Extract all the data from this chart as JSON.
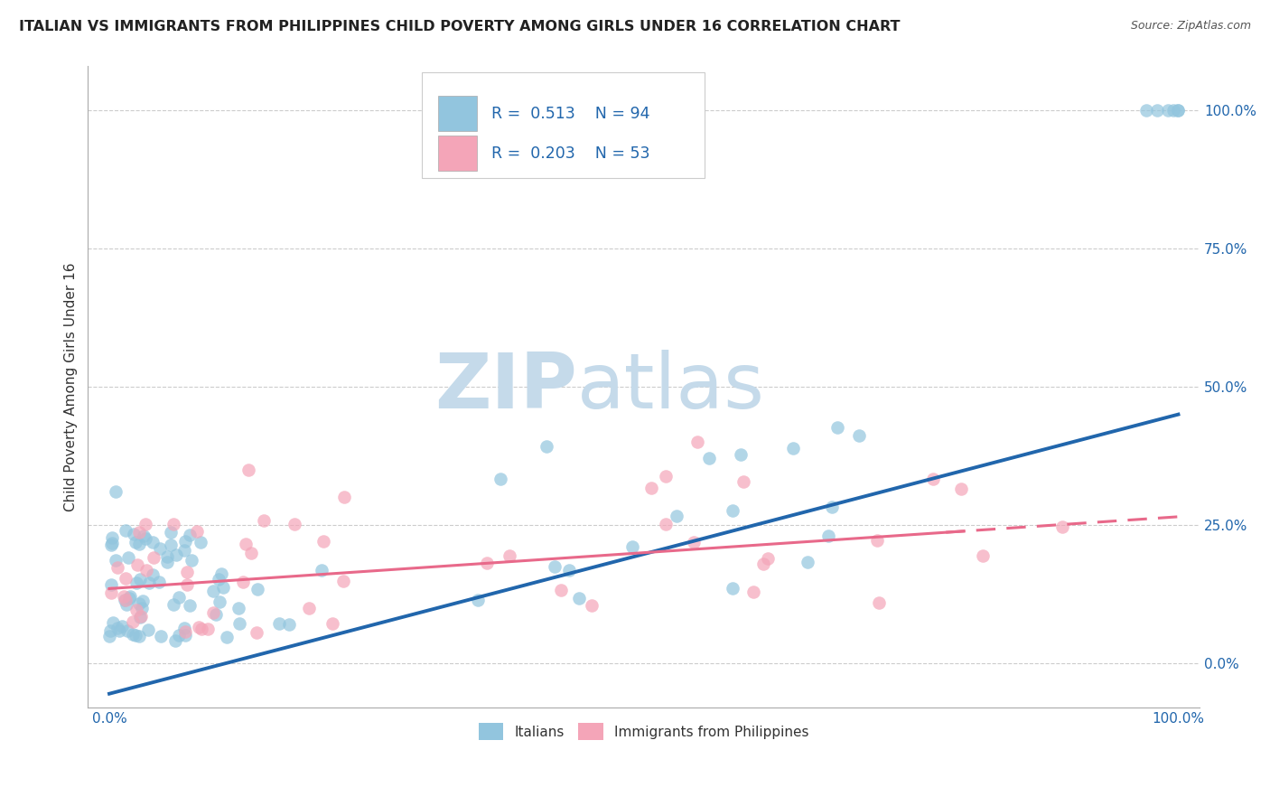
{
  "title": "ITALIAN VS IMMIGRANTS FROM PHILIPPINES CHILD POVERTY AMONG GIRLS UNDER 16 CORRELATION CHART",
  "source": "Source: ZipAtlas.com",
  "ylabel": "Child Poverty Among Girls Under 16",
  "xlim": [
    -0.02,
    1.02
  ],
  "ylim": [
    -0.08,
    1.08
  ],
  "yticks": [
    0.0,
    0.25,
    0.5,
    0.75,
    1.0
  ],
  "ytick_labels": [
    "0.0%",
    "25.0%",
    "50.0%",
    "75.0%",
    "100.0%"
  ],
  "xtick_labels": [
    "0.0%",
    "100.0%"
  ],
  "legend_R1": "R =  0.513",
  "legend_N1": "N = 94",
  "legend_R2": "R =  0.203",
  "legend_N2": "N = 53",
  "label1": "Italians",
  "label2": "Immigrants from Philippines",
  "blue_color": "#92c5de",
  "pink_color": "#f4a5b8",
  "blue_line_color": "#2166ac",
  "pink_line_color": "#e8698a",
  "text_blue": "#2166ac",
  "watermark_color": "#dce8f0",
  "background_color": "#ffffff",
  "grid_color": "#cccccc",
  "title_fontsize": 11.5,
  "label_fontsize": 11,
  "tick_fontsize": 11,
  "blue_slope": 0.505,
  "blue_intercept": -0.055,
  "pink_slope": 0.13,
  "pink_intercept": 0.135
}
